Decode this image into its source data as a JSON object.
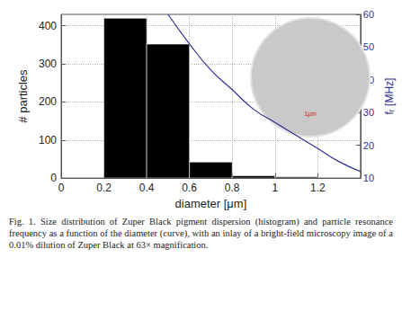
{
  "chart_data": {
    "type": "histogram",
    "bins": [
      0.2,
      0.4,
      0.6,
      0.8,
      1.0,
      1.2
    ],
    "counts": [
      420,
      352,
      42,
      6,
      3
    ],
    "color": "#000000",
    "xlabel": "diameter [μm]",
    "ylabel": "# particles",
    "y2label": "fᵣ [MHz]",
    "xlim": [
      0,
      1.4
    ],
    "xticks": [
      0,
      0.2,
      0.4,
      0.6,
      0.8,
      1.0,
      1.2
    ],
    "ylim": [
      0,
      430
    ],
    "yticks": [
      0,
      100,
      200,
      300,
      400
    ],
    "y2lim": [
      10,
      60
    ],
    "y2ticks": [
      10,
      20,
      30,
      40,
      50,
      60
    ],
    "grid": true,
    "series": [
      {
        "type": "line",
        "axis": "y2",
        "color": "#2e3192",
        "x": [
          0.5,
          0.6,
          0.7,
          0.8,
          0.9,
          1.0,
          1.1,
          1.2,
          1.3,
          1.4
        ],
        "values": [
          60,
          51,
          43,
          37,
          31,
          27,
          23,
          19,
          15,
          12
        ]
      }
    ],
    "annotations": [
      {
        "text": "1μm"
      }
    ],
    "caption": "Fig. 1.  Size distribution of Zuper Black pigment dispersion (histogram) and particle resonance frequency as a function of the diameter (curve), with an inlay of a bright-field microscopy image of a 0.01% dilution of Zuper Black at 63× magnification."
  }
}
